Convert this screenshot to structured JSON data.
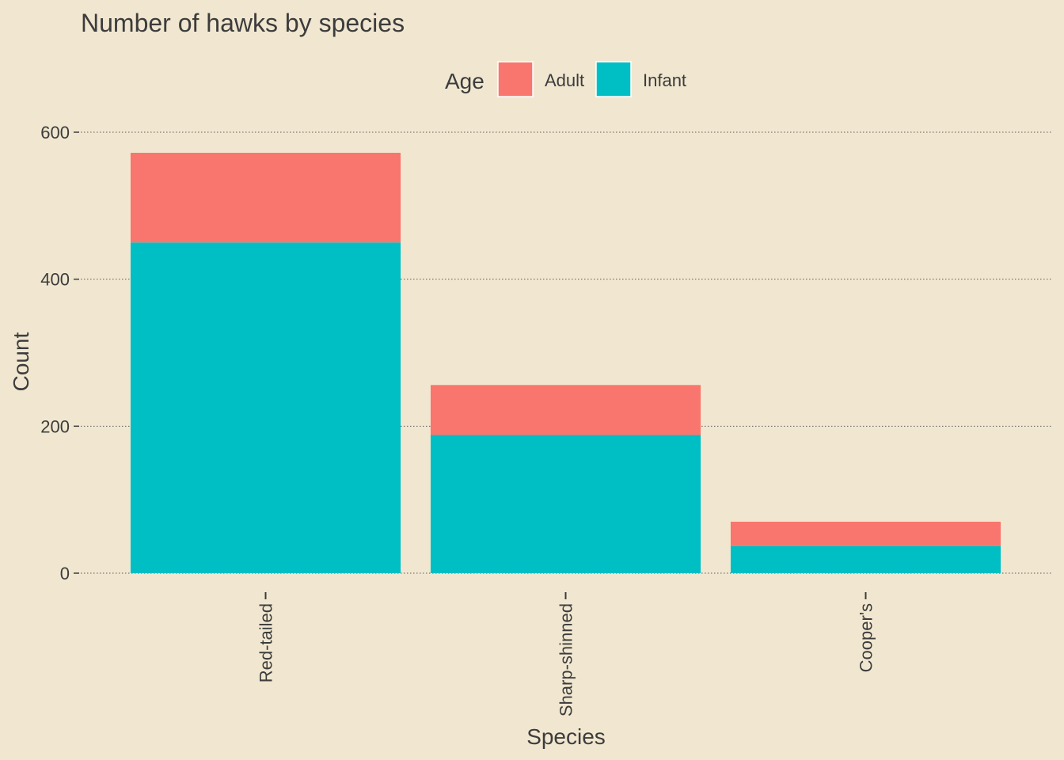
{
  "chart_data": {
    "type": "bar",
    "stacked": true,
    "title": "Number of hawks by species",
    "xlabel": "Species",
    "ylabel": "Count",
    "categories": [
      "Red-tailed",
      "Sharp-shinned",
      "Cooper's"
    ],
    "series": [
      {
        "name": "Infant",
        "color": "#00BFC4",
        "values": [
          450,
          188,
          37
        ]
      },
      {
        "name": "Adult",
        "color": "#F8766D",
        "values": [
          122,
          68,
          33
        ]
      }
    ],
    "ylim": [
      0,
      600
    ],
    "yticks": [
      0,
      200,
      400,
      600
    ],
    "grid": "horizontal dotted",
    "legend": {
      "title": "Age",
      "position": "top",
      "entries": [
        {
          "label": "Adult",
          "color": "#F8766D"
        },
        {
          "label": "Infant",
          "color": "#00BFC4"
        }
      ]
    },
    "background": "#F1E7D0",
    "text_color": "#3C3C3C"
  }
}
